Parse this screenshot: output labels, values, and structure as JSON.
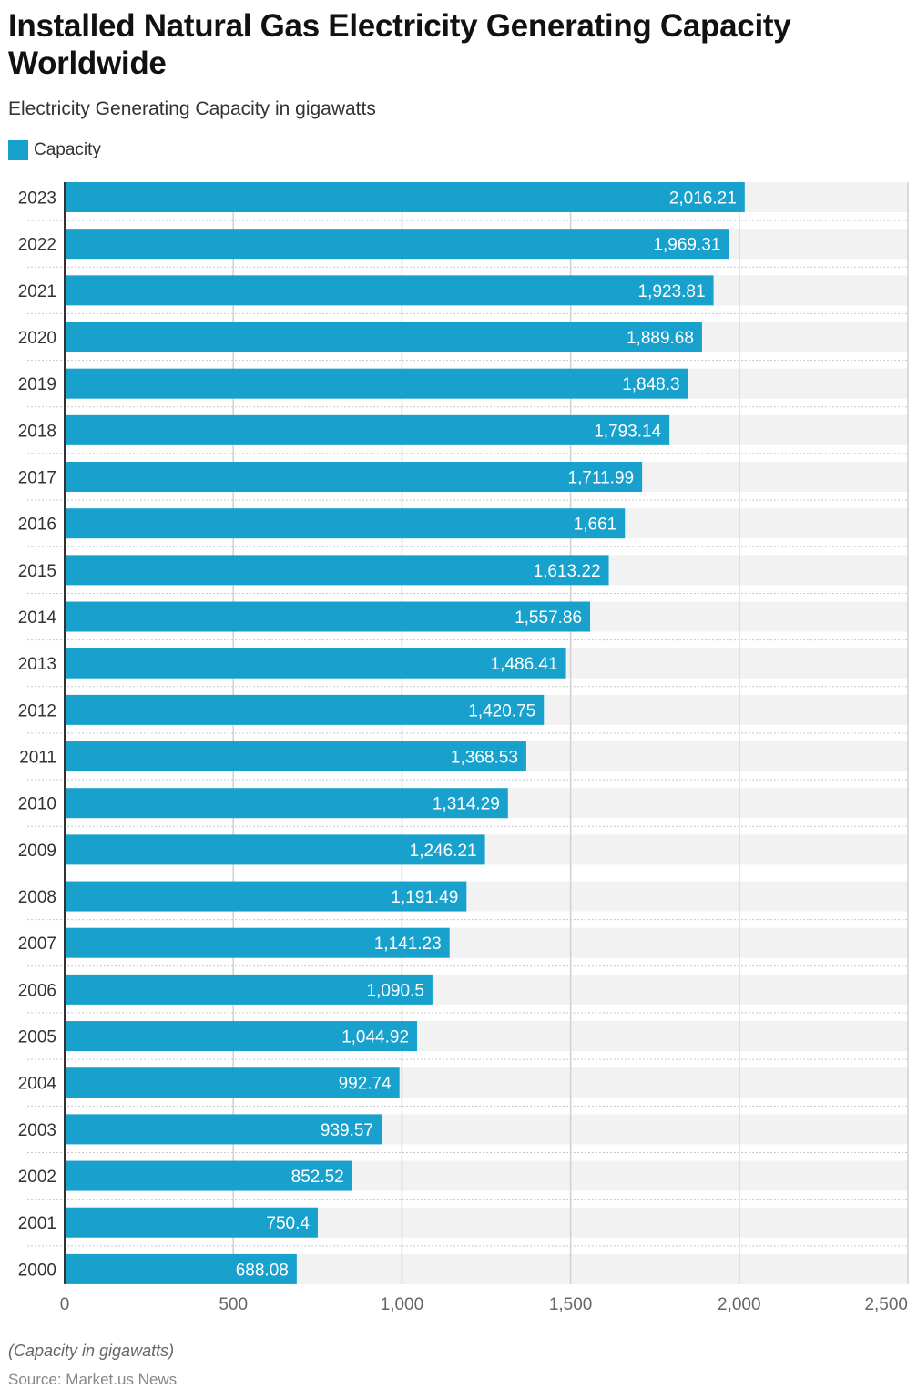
{
  "chart_data": {
    "type": "bar",
    "orientation": "horizontal",
    "title": "Installed Natural Gas Electricity Generating Capacity Worldwide",
    "subtitle": "Electricity Generating Capacity in gigawatts",
    "categories": [
      "2023",
      "2022",
      "2021",
      "2020",
      "2019",
      "2018",
      "2017",
      "2016",
      "2015",
      "2014",
      "2013",
      "2012",
      "2011",
      "2010",
      "2009",
      "2008",
      "2007",
      "2006",
      "2005",
      "2004",
      "2003",
      "2002",
      "2001",
      "2000"
    ],
    "series": [
      {
        "name": "Capacity",
        "color": "#18a1cd",
        "values": [
          2016.21,
          1969.31,
          1923.81,
          1889.68,
          1848.3,
          1793.14,
          1711.99,
          1661,
          1613.22,
          1557.86,
          1486.41,
          1420.75,
          1368.53,
          1314.29,
          1246.21,
          1191.49,
          1141.23,
          1090.5,
          1044.92,
          992.74,
          939.57,
          852.52,
          750.4,
          688.08
        ],
        "labels": [
          "2,016.21",
          "1,969.31",
          "1,923.81",
          "1,889.68",
          "1,848.3",
          "1,793.14",
          "1,711.99",
          "1,661",
          "1,613.22",
          "1,557.86",
          "1,486.41",
          "1,420.75",
          "1,368.53",
          "1,314.29",
          "1,246.21",
          "1,191.49",
          "1,141.23",
          "1,090.5",
          "1,044.92",
          "992.74",
          "939.57",
          "852.52",
          "750.4",
          "688.08"
        ]
      }
    ],
    "xlim": [
      0,
      2500
    ],
    "xticks": [
      0,
      500,
      1000,
      1500,
      2000,
      2500
    ],
    "xtick_labels": [
      "0",
      "500",
      "1,000",
      "1,500",
      "2,000",
      "2,500"
    ],
    "grid": true,
    "legend_position": "top-left"
  },
  "note": "(Capacity in gigawatts)",
  "source": "Source: Market.us News"
}
